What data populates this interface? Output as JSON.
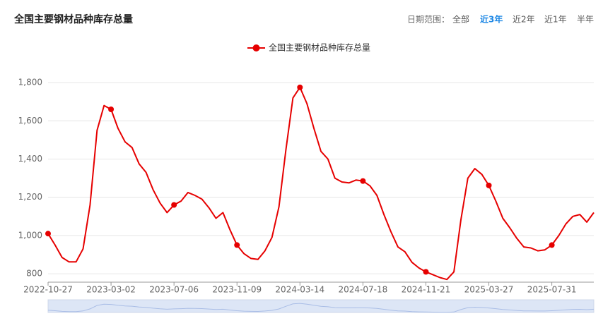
{
  "toolbar": {
    "label": "日期范围：",
    "options": [
      "全部",
      "近3年",
      "近2年",
      "近1年",
      "半年"
    ],
    "active": 1
  },
  "chart_data": {
    "type": "line",
    "title": "全国主要钢材品种库存总量",
    "categories": [
      "2022-10-27",
      null,
      null,
      null,
      null,
      null,
      null,
      null,
      null,
      "2023-03-02",
      null,
      null,
      null,
      null,
      null,
      null,
      null,
      null,
      "2023-07-06",
      null,
      null,
      null,
      null,
      null,
      null,
      null,
      null,
      "2023-11-09",
      null,
      null,
      null,
      null,
      null,
      null,
      null,
      null,
      "2024-03-14",
      null,
      null,
      null,
      null,
      null,
      null,
      null,
      null,
      "2024-07-18",
      null,
      null,
      null,
      null,
      null,
      null,
      null,
      null,
      "2024-11-21",
      null,
      null,
      null,
      null,
      null,
      null,
      null,
      null,
      "2025-03-27",
      null,
      null,
      null,
      null,
      null,
      null,
      null,
      null,
      "2025-07-31",
      null,
      null,
      null,
      null,
      null,
      null
    ],
    "series": [
      {
        "name": "全国主要钢材品种库存总量",
        "color": "#e60000",
        "values": [
          1010,
          950,
          885,
          862,
          862,
          930,
          1160,
          1550,
          1680,
          1660,
          1560,
          1490,
          1460,
          1375,
          1330,
          1240,
          1170,
          1120,
          1160,
          1180,
          1225,
          1210,
          1190,
          1145,
          1090,
          1120,
          1030,
          950,
          905,
          880,
          875,
          920,
          990,
          1150,
          1450,
          1720,
          1775,
          1690,
          1560,
          1440,
          1400,
          1300,
          1280,
          1275,
          1290,
          1285,
          1260,
          1210,
          1110,
          1020,
          940,
          915,
          860,
          830,
          810,
          795,
          780,
          770,
          810,
          1080,
          1300,
          1350,
          1320,
          1262,
          1180,
          1090,
          1040,
          985,
          940,
          935,
          920,
          925,
          950,
          1000,
          1060,
          1100,
          1110,
          1070,
          1120
        ]
      }
    ],
    "ylim": [
      756,
      1863
    ],
    "yticks": [
      800,
      {
        "value": 1000,
        "label": "1,000"
      },
      {
        "value": 1200,
        "label": "1,200"
      },
      {
        "value": 1400,
        "label": "1,400"
      },
      {
        "value": 1600,
        "label": "1,600"
      },
      {
        "value": 1800,
        "label": "1,800"
      }
    ],
    "grid": true,
    "legend": "top"
  }
}
